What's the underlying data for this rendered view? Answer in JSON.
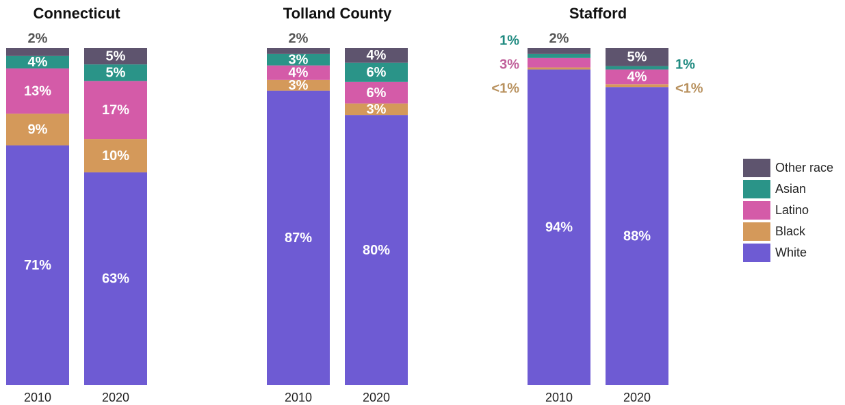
{
  "chart_data": [
    {
      "type": "bar",
      "stacked": true,
      "title": "Connecticut",
      "categories": [
        "2010",
        "2020"
      ],
      "ylim": [
        0,
        100
      ],
      "series": [
        {
          "name": "White",
          "color": "#6e5bd3",
          "values": [
            71.1,
            63.1
          ],
          "value_labels": [
            "71%",
            "63%"
          ]
        },
        {
          "name": "Black",
          "color": "#d4995a",
          "values": [
            9.4,
            9.9
          ],
          "value_labels": [
            "9%",
            "10%"
          ]
        },
        {
          "name": "Latino",
          "color": "#d45ba8",
          "values": [
            13.4,
            17.2
          ],
          "value_labels": [
            "13%",
            "17%"
          ]
        },
        {
          "name": "Asian",
          "color": "#2a9488",
          "values": [
            3.7,
            4.9
          ],
          "value_labels": [
            "4%",
            "5%"
          ]
        },
        {
          "name": "Other race",
          "color": "#5e546e",
          "values": [
            2.4,
            4.9
          ],
          "value_labels": [
            "2%",
            "5%"
          ]
        }
      ]
    },
    {
      "type": "bar",
      "stacked": true,
      "title": "Tolland County",
      "categories": [
        "2010",
        "2020"
      ],
      "ylim": [
        0,
        100
      ],
      "series": [
        {
          "name": "White",
          "color": "#6e5bd3",
          "values": [
            87.3,
            80.1
          ],
          "value_labels": [
            "87%",
            "80%"
          ]
        },
        {
          "name": "Black",
          "color": "#d4995a",
          "values": [
            3.2,
            3.4
          ],
          "value_labels": [
            "3%",
            "3%"
          ]
        },
        {
          "name": "Latino",
          "color": "#d45ba8",
          "values": [
            4.3,
            6.4
          ],
          "value_labels": [
            "4%",
            "6%"
          ]
        },
        {
          "name": "Asian",
          "color": "#2a9488",
          "values": [
            3.4,
            5.7
          ],
          "value_labels": [
            "3%",
            "6%"
          ]
        },
        {
          "name": "Other race",
          "color": "#5e546e",
          "values": [
            1.8,
            4.4
          ],
          "value_labels": [
            "2%",
            "4%"
          ]
        }
      ]
    },
    {
      "type": "bar",
      "stacked": true,
      "title": "Stafford",
      "categories": [
        "2010",
        "2020"
      ],
      "ylim": [
        0,
        100
      ],
      "series": [
        {
          "name": "White",
          "color": "#6e5bd3",
          "values": [
            93.6,
            88.4
          ],
          "value_labels": [
            "94%",
            "88%"
          ]
        },
        {
          "name": "Black",
          "color": "#d4995a",
          "values": [
            0.6,
            0.8
          ],
          "value_labels": [
            "<1%",
            "<1%"
          ]
        },
        {
          "name": "Latino",
          "color": "#d45ba8",
          "values": [
            2.8,
            4.4
          ],
          "value_labels": [
            "3%",
            "4%"
          ]
        },
        {
          "name": "Asian",
          "color": "#2a9488",
          "values": [
            1.2,
            1.0
          ],
          "value_labels": [
            "1%",
            "1%"
          ]
        },
        {
          "name": "Other race",
          "color": "#5e546e",
          "values": [
            1.8,
            5.4
          ],
          "value_labels": [
            "2%",
            "5%"
          ]
        }
      ]
    }
  ]
}
